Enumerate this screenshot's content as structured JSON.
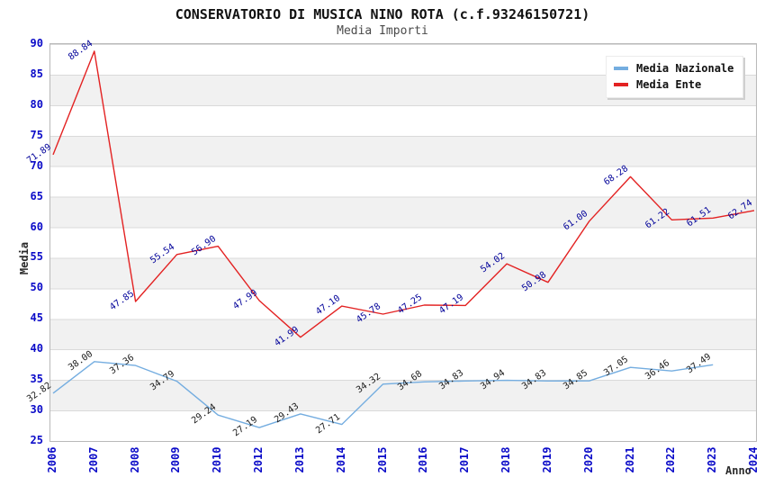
{
  "chart_data": {
    "type": "line",
    "title": "CONSERVATORIO DI MUSICA NINO ROTA (c.f.93246150721)",
    "subtitle": "Media Importi",
    "xlabel": "Anno",
    "ylabel": "Media",
    "ylim": [
      25,
      90
    ],
    "ytick_step": 5,
    "grid": "horizontal-bands",
    "legend_position": "top-right",
    "axis_tick_color": "#0a0ac8",
    "categories": [
      "2006",
      "2007",
      "2008",
      "2009",
      "2010",
      "2012",
      "2013",
      "2014",
      "2015",
      "2016",
      "2017",
      "2018",
      "2019",
      "2020",
      "2021",
      "2022",
      "2023",
      "2024"
    ],
    "series": [
      {
        "name": "Media Nazionale",
        "color": "#74ade0",
        "label_color": "#1a1a1a",
        "values": [
          32.82,
          38.0,
          37.36,
          34.79,
          29.24,
          27.19,
          29.43,
          27.71,
          34.32,
          34.68,
          34.83,
          34.94,
          34.83,
          34.85,
          37.05,
          36.46,
          37.49,
          null
        ]
      },
      {
        "name": "Media Ente",
        "color": "#e32222",
        "label_color": "#000099",
        "values": [
          71.89,
          88.84,
          47.85,
          55.54,
          56.9,
          47.99,
          41.99,
          47.1,
          45.78,
          47.25,
          47.19,
          54.02,
          50.98,
          61.0,
          68.28,
          61.22,
          61.51,
          62.74
        ]
      }
    ]
  }
}
